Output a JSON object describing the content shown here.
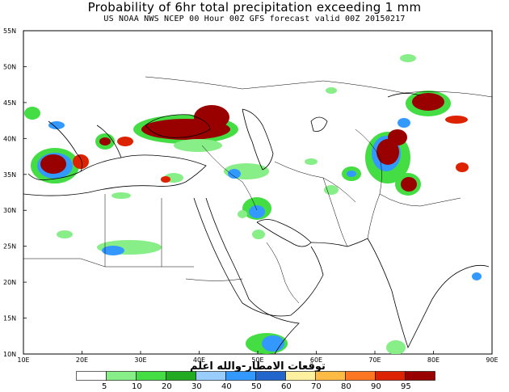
{
  "header": {
    "title": "Probability of 6hr total precipitation exceeding 1 mm",
    "subtitle": "US NOAA NWS NCEP 00 Hour 00Z GFS forecast valid 00Z 20150217"
  },
  "map": {
    "lat_labels": [
      "55N",
      "50N",
      "45N",
      "40N",
      "35N",
      "30N",
      "25N",
      "20N",
      "15N",
      "10N"
    ],
    "lon_labels": [
      "10E",
      "20E",
      "30E",
      "40E",
      "50E",
      "60E",
      "70E",
      "80E",
      "90E"
    ],
    "extent": {
      "lon": [
        10,
        90
      ],
      "lat": [
        10,
        55
      ]
    }
  },
  "watermark": "توقعات الامطار-والله اعلم",
  "legend": {
    "labels": [
      "5",
      "10",
      "20",
      "30",
      "40",
      "50",
      "60",
      "70",
      "80",
      "90",
      "95"
    ],
    "colors": [
      "#ffffff",
      "#88ee88",
      "#44dd44",
      "#22aa22",
      "#99ccff",
      "#3399ff",
      "#2266cc",
      "#fff0a0",
      "#ffbb44",
      "#ff7722",
      "#dd2200",
      "#990000"
    ]
  }
}
